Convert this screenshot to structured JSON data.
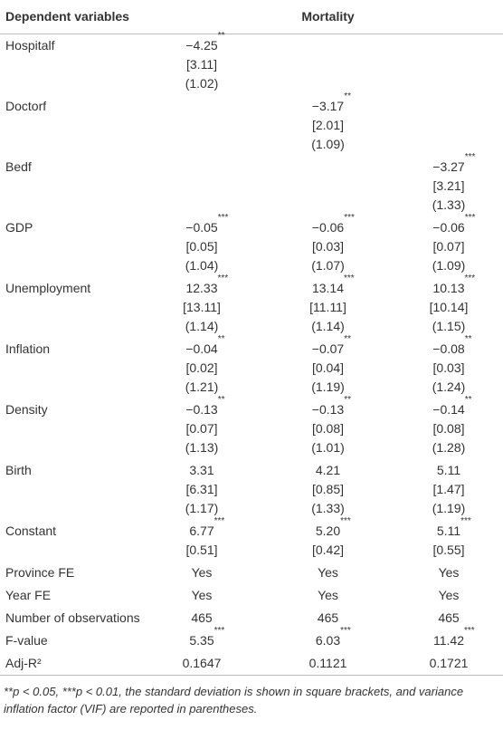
{
  "table": {
    "header": {
      "label": "Dependent variables",
      "group": "Mortality"
    },
    "rows": [
      {
        "label": "Hospitalf",
        "cells": [
          [
            "−4.25**",
            "[3.11]",
            "(1.02)"
          ],
          null,
          null
        ]
      },
      {
        "label": "Doctorf",
        "cells": [
          null,
          [
            "−3.17**",
            "[2.01]",
            "(1.09)"
          ],
          null
        ]
      },
      {
        "label": "Bedf",
        "cells": [
          null,
          null,
          [
            "−3.27***",
            "[3.21]",
            "(1.33)"
          ]
        ]
      },
      {
        "label": "GDP",
        "cells": [
          [
            "−0.05***",
            "[0.05]",
            "(1.04)"
          ],
          [
            "−0.06***",
            "[0.03]",
            "(1.07)"
          ],
          [
            "−0.06***",
            "[0.07]",
            "(1.09)"
          ]
        ]
      },
      {
        "label": "Unemployment",
        "cells": [
          [
            "12.33***",
            "[13.11]",
            "(1.14)"
          ],
          [
            "13.14***",
            "[11.11]",
            "(1.14)"
          ],
          [
            "10.13***",
            "[10.14]",
            "(1.15)"
          ]
        ]
      },
      {
        "label": "Inflation",
        "cells": [
          [
            "−0.04**",
            "[0.02]",
            "(1.21)"
          ],
          [
            "−0.07**",
            "[0.04]",
            "(1.19)"
          ],
          [
            "−0.08**",
            "[0.03]",
            "(1.24)"
          ]
        ]
      },
      {
        "label": "Density",
        "cells": [
          [
            "−0.13**",
            "[0.07]",
            "(1.13)"
          ],
          [
            "−0.13**",
            "[0.08]",
            "(1.01)"
          ],
          [
            "−0.14**",
            "[0.08]",
            "(1.28)"
          ]
        ]
      },
      {
        "label": "Birth",
        "cells": [
          [
            "3.31",
            "[6.31]",
            "(1.17)"
          ],
          [
            "4.21",
            "[0.85]",
            "(1.33)"
          ],
          [
            "5.11",
            "[1.47]",
            "(1.19)"
          ]
        ]
      },
      {
        "label": "Constant",
        "cells": [
          [
            "6.77***",
            "[0.51]"
          ],
          [
            "5.20***",
            "[0.42]"
          ],
          [
            "5.11***",
            "[0.55]"
          ]
        ]
      },
      {
        "label": "Province FE",
        "cells": [
          [
            "Yes"
          ],
          [
            "Yes"
          ],
          [
            "Yes"
          ]
        ]
      },
      {
        "label": "Year FE",
        "cells": [
          [
            "Yes"
          ],
          [
            "Yes"
          ],
          [
            "Yes"
          ]
        ]
      },
      {
        "label": "Number of observations",
        "cells": [
          [
            "465"
          ],
          [
            "465"
          ],
          [
            "465"
          ]
        ]
      },
      {
        "label": "F-value",
        "cells": [
          [
            "5.35***"
          ],
          [
            "6.03***"
          ],
          [
            "11.42***"
          ]
        ]
      },
      {
        "label": "Adj-R²",
        "cells": [
          [
            "0.1647"
          ],
          [
            "0.1121"
          ],
          [
            "0.1721"
          ]
        ]
      }
    ]
  },
  "footnote": "**p < 0.05, ***p < 0.01, the standard deviation is shown in square brackets, and variance inflation factor (VIF) are reported in parentheses."
}
